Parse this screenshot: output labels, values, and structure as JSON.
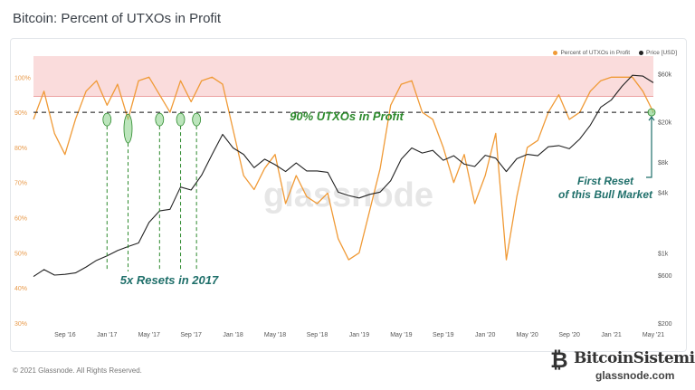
{
  "page": {
    "title": "Bitcoin: Percent of UTXOs in Profit",
    "footer": "© 2021 Glassnode. All Rights Reserved.",
    "watermark": "glassnode",
    "brand": {
      "name": "BitcoinSistemi",
      "sub": "glassnode.com"
    }
  },
  "legend": {
    "items": [
      {
        "label": "Percent of UTXOs in Profit",
        "color": "#f09a36"
      },
      {
        "label": "Price [USD]",
        "color": "#222222"
      }
    ]
  },
  "annotations": {
    "threshold_label": "90% UTXOs in Profit",
    "resets_label": "5x Resets in 2017",
    "first_reset_line1": "First Reset",
    "first_reset_line2": "of this Bull Market",
    "threshold_color": "#2d8a2d",
    "first_reset_color": "#1f6f6a"
  },
  "chart_data": {
    "type": "line",
    "title": "Bitcoin: Percent of UTXOs in Profit",
    "x_ticks": [
      "Sep '16",
      "Jan '17",
      "May '17",
      "Sep '17",
      "Jan '18",
      "May '18",
      "Sep '18",
      "Jan '19",
      "May '19",
      "Sep '19",
      "Jan '20",
      "May '20",
      "Sep '20",
      "Jan '21",
      "May '21"
    ],
    "y_left_ticks": [
      "30%",
      "40%",
      "50%",
      "60%",
      "70%",
      "80%",
      "90%",
      "100%"
    ],
    "y_left_range": [
      30,
      106
    ],
    "y_right_ticks": [
      "$200",
      "$600",
      "$1k",
      "$4k",
      "$8k",
      "$20k",
      "$60k"
    ],
    "y_right_values": [
      200,
      600,
      1000,
      4000,
      8000,
      20000,
      60000
    ],
    "y_right_scale": "log",
    "highlight_band": [
      94.5,
      106
    ],
    "threshold": 90,
    "series": [
      {
        "name": "Percent of UTXOs in Profit",
        "color": "#f09a36",
        "x": [
          "2016-06",
          "2016-07",
          "2016-08",
          "2016-09",
          "2016-10",
          "2016-11",
          "2016-12",
          "2017-01",
          "2017-02",
          "2017-03",
          "2017-04",
          "2017-05",
          "2017-06",
          "2017-07",
          "2017-08",
          "2017-09",
          "2017-10",
          "2017-11",
          "2017-12",
          "2018-01",
          "2018-02",
          "2018-03",
          "2018-04",
          "2018-05",
          "2018-06",
          "2018-07",
          "2018-08",
          "2018-09",
          "2018-10",
          "2018-11",
          "2018-12",
          "2019-01",
          "2019-02",
          "2019-03",
          "2019-04",
          "2019-05",
          "2019-06",
          "2019-07",
          "2019-08",
          "2019-09",
          "2019-10",
          "2019-11",
          "2019-12",
          "2020-01",
          "2020-02",
          "2020-03",
          "2020-04",
          "2020-05",
          "2020-06",
          "2020-07",
          "2020-08",
          "2020-09",
          "2020-10",
          "2020-11",
          "2020-12",
          "2021-01",
          "2021-02",
          "2021-03",
          "2021-04",
          "2021-05"
        ],
        "values": [
          88,
          96,
          84,
          78,
          88,
          96,
          99,
          92,
          98,
          88,
          99,
          100,
          95,
          90,
          99,
          93,
          99,
          100,
          98,
          85,
          72,
          68,
          74,
          78,
          64,
          72,
          66,
          64,
          67,
          54,
          48,
          50,
          62,
          74,
          92,
          98,
          99,
          90,
          88,
          80,
          70,
          78,
          64,
          72,
          84,
          48,
          66,
          80,
          82,
          90,
          95,
          88,
          90,
          96,
          99,
          100,
          100,
          100,
          96,
          90
        ]
      },
      {
        "name": "Price [USD]",
        "color": "#222222",
        "x": [
          "2016-06",
          "2016-07",
          "2016-08",
          "2016-09",
          "2016-10",
          "2016-11",
          "2016-12",
          "2017-01",
          "2017-02",
          "2017-03",
          "2017-04",
          "2017-05",
          "2017-06",
          "2017-07",
          "2017-08",
          "2017-09",
          "2017-10",
          "2017-11",
          "2017-12",
          "2018-01",
          "2018-02",
          "2018-03",
          "2018-04",
          "2018-05",
          "2018-06",
          "2018-07",
          "2018-08",
          "2018-09",
          "2018-10",
          "2018-11",
          "2018-12",
          "2019-01",
          "2019-02",
          "2019-03",
          "2019-04",
          "2019-05",
          "2019-06",
          "2019-07",
          "2019-08",
          "2019-09",
          "2019-10",
          "2019-11",
          "2019-12",
          "2020-01",
          "2020-02",
          "2020-03",
          "2020-04",
          "2020-05",
          "2020-06",
          "2020-07",
          "2020-08",
          "2020-09",
          "2020-10",
          "2020-11",
          "2020-12",
          "2021-01",
          "2021-02",
          "2021-03",
          "2021-04",
          "2021-05"
        ],
        "values": [
          580,
          680,
          600,
          610,
          630,
          720,
          840,
          930,
          1050,
          1150,
          1250,
          2000,
          2600,
          2700,
          4500,
          4200,
          5900,
          9500,
          15000,
          11000,
          9500,
          7000,
          8500,
          7500,
          6400,
          7800,
          6500,
          6500,
          6300,
          4000,
          3700,
          3500,
          3800,
          4000,
          5200,
          8500,
          11000,
          9800,
          10400,
          8300,
          9200,
          7600,
          7200,
          9300,
          8700,
          6400,
          8600,
          9500,
          9200,
          11300,
          11600,
          10800,
          13500,
          18500,
          28000,
          33000,
          45000,
          58000,
          57000,
          49000
        ]
      }
    ]
  }
}
